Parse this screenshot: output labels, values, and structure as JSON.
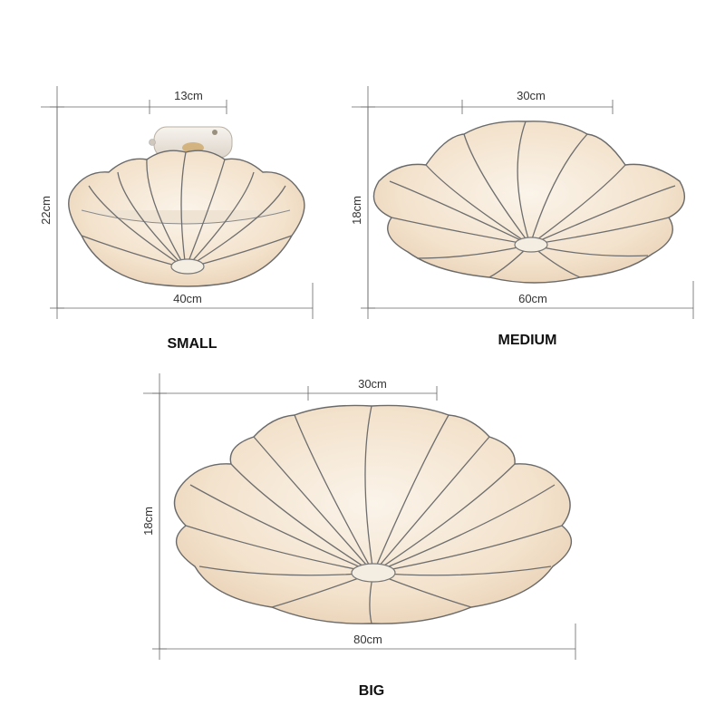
{
  "lamps": {
    "small": {
      "label": "SMALL",
      "top_width": "13cm",
      "height": "22cm",
      "width": "40cm"
    },
    "medium": {
      "label": "MEDIUM",
      "top_width": "30cm",
      "height": "18cm",
      "width": "60cm"
    },
    "big": {
      "label": "BIG",
      "top_width": "30cm",
      "height": "18cm",
      "width": "80cm"
    }
  },
  "colors": {
    "shade": "#f5e6d3",
    "rib": "#6e6e6e",
    "mount": "#f1ece4"
  }
}
